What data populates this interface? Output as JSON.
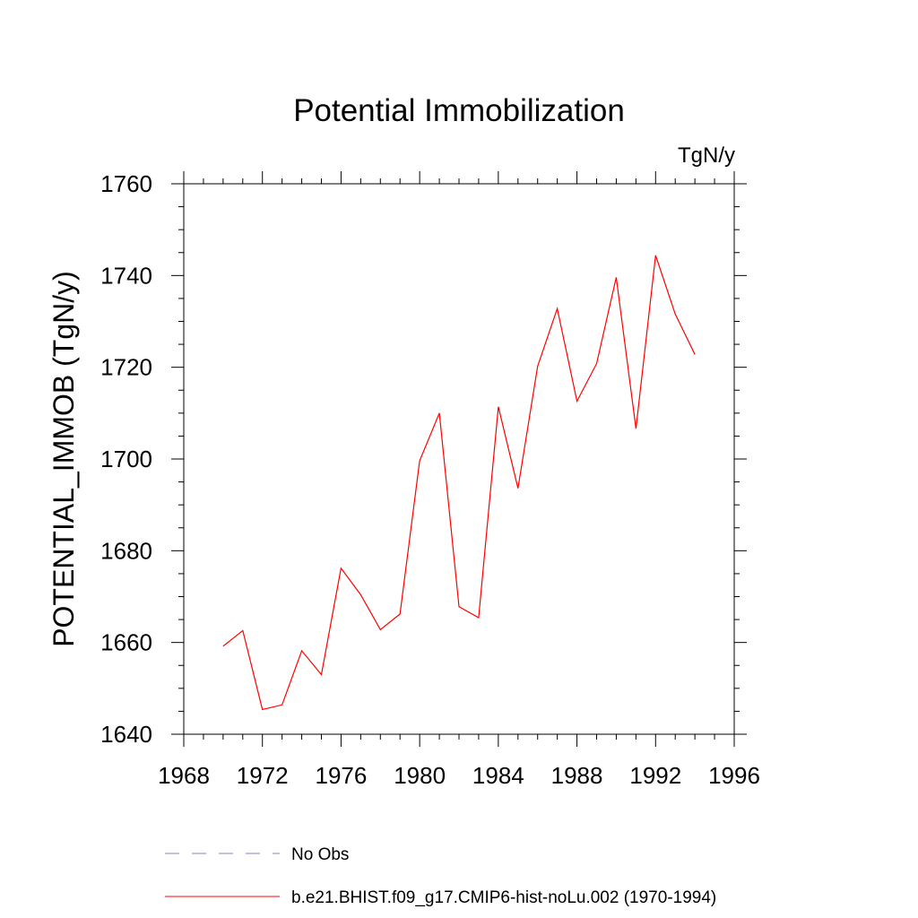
{
  "chart_data": {
    "type": "line",
    "title": "Potential Immobilization",
    "units": "TgN/y",
    "xlabel": "",
    "ylabel": "POTENTIAL_IMMOB  (TgN/y)",
    "xlim": [
      1968,
      1996
    ],
    "ylim": [
      1640,
      1760
    ],
    "xticks": [
      1968,
      1972,
      1976,
      1980,
      1984,
      1988,
      1992,
      1996
    ],
    "yticks": [
      1640,
      1660,
      1680,
      1700,
      1720,
      1740,
      1760
    ],
    "grid": false,
    "legend_position": "bottom",
    "series": [
      {
        "name": "b.e21.BHIST.f09_g17.CMIP6-hist-noLu.002 (1970-1994)",
        "color": "#ff0000",
        "style": "solid",
        "x": [
          1970,
          1971,
          1972,
          1973,
          1974,
          1975,
          1976,
          1977,
          1978,
          1979,
          1980,
          1981,
          1982,
          1983,
          1984,
          1985,
          1986,
          1987,
          1988,
          1989,
          1990,
          1991,
          1992,
          1993,
          1994
        ],
        "y": [
          1659.2,
          1662.6,
          1645.4,
          1646.4,
          1658.2,
          1653.0,
          1676.2,
          1670.4,
          1662.8,
          1666.2,
          1699.6,
          1710.0,
          1667.8,
          1665.4,
          1711.4,
          1693.6,
          1720.2,
          1732.8,
          1712.6,
          1720.8,
          1739.6,
          1706.6,
          1744.4,
          1731.6,
          1722.8
        ]
      },
      {
        "name": "No Obs",
        "color": "#8080c0",
        "style": "dashed",
        "x": [],
        "y": []
      }
    ]
  }
}
